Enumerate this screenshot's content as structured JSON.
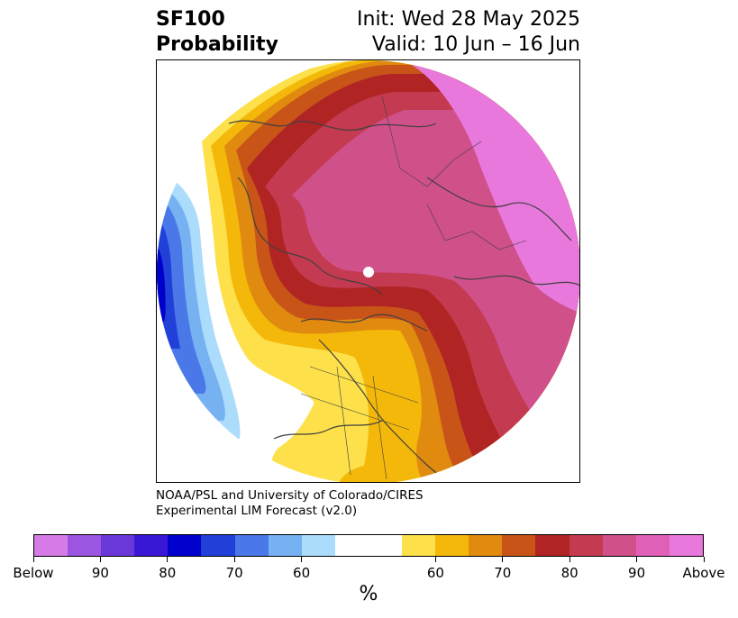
{
  "header": {
    "title_line1": "SF100",
    "title_line2": "Probability",
    "init_text": "Init: Wed 28 May 2025",
    "valid_text": "Valid: 10 Jun – 16 Jun"
  },
  "credit": {
    "line1": "NOAA/PSL and University of Colorado/CIRES",
    "line2": "Experimental LIM Forecast (v2.0)"
  },
  "colorbar": {
    "colors": [
      "#d77ce6",
      "#9b55e0",
      "#6a38d8",
      "#3a16d6",
      "#0000cd",
      "#2040d8",
      "#4a78e8",
      "#76b2f2",
      "#acdcfc",
      "#ffffff",
      "#ffffff",
      "#fde04a",
      "#f3b80a",
      "#e08a10",
      "#c85418",
      "#b02424",
      "#c43a50",
      "#d0508a",
      "#e060b8",
      "#e878dc"
    ],
    "tick_labels": [
      "Below",
      "90",
      "80",
      "70",
      "60",
      "60",
      "70",
      "80",
      "90",
      "Above"
    ],
    "unit": "%"
  },
  "map": {
    "projection": "north-polar",
    "pole_marker_color": "#ffffff",
    "coastline_color": "#404040"
  }
}
